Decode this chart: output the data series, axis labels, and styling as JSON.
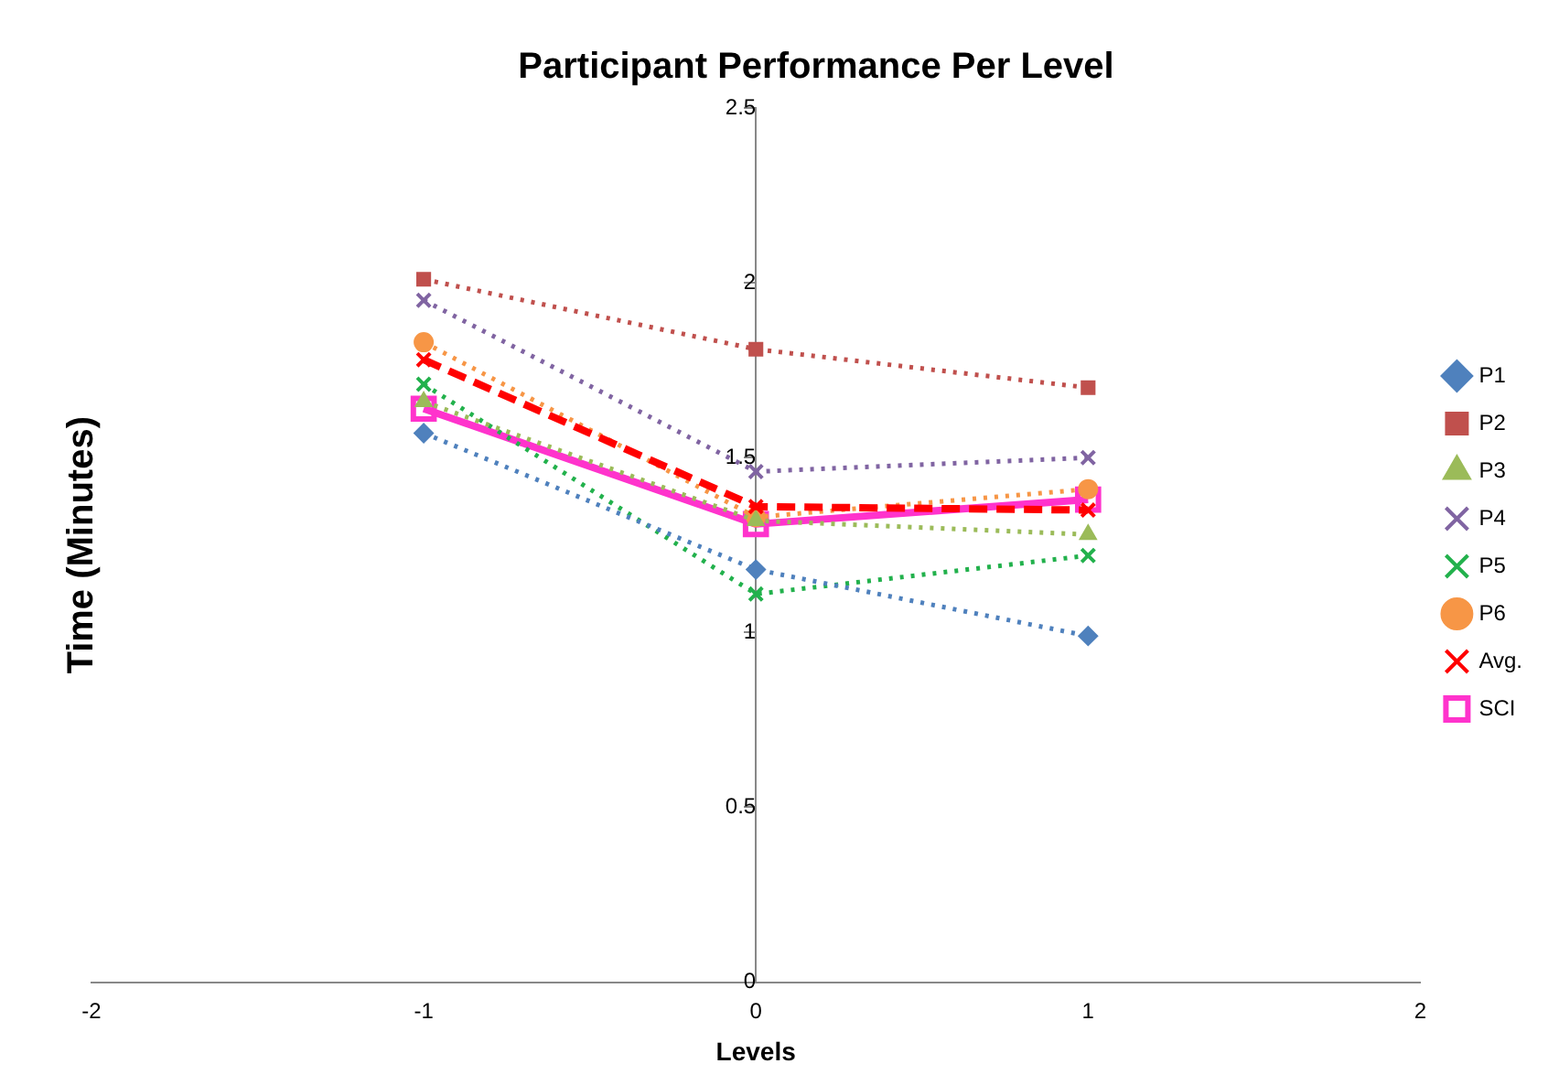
{
  "chart_data": {
    "type": "line",
    "title": "Participant Performance Per Level",
    "xlabel": "Levels",
    "ylabel": "Time (Minutes)",
    "x": [
      -1,
      0,
      1
    ],
    "xlim": [
      -2,
      2
    ],
    "xticks": [
      -2,
      -1,
      0,
      1,
      2
    ],
    "ylim": [
      0,
      2.5
    ],
    "yticks": [
      0,
      0.5,
      1,
      1.5,
      2,
      2.5
    ],
    "grid": false,
    "legend": "right",
    "series": [
      {
        "name": "P1",
        "color": "#4f81bd",
        "values": [
          1.57,
          1.18,
          0.99
        ],
        "marker": "diamond",
        "line_style": "dotted"
      },
      {
        "name": "P2",
        "color": "#c0504d",
        "values": [
          2.01,
          1.81,
          1.7
        ],
        "marker": "square",
        "line_style": "dotted"
      },
      {
        "name": "P3",
        "color": "#9bbb59",
        "values": [
          1.66,
          1.32,
          1.28
        ],
        "marker": "triangle",
        "line_style": "dotted"
      },
      {
        "name": "P4",
        "color": "#8064a2",
        "values": [
          1.95,
          1.46,
          1.5
        ],
        "marker": "cross",
        "line_style": "dotted"
      },
      {
        "name": "P5",
        "color": "#22b14c",
        "values": [
          1.71,
          1.11,
          1.22
        ],
        "marker": "cross",
        "line_style": "dotted"
      },
      {
        "name": "P6",
        "color": "#f79646",
        "values": [
          1.83,
          1.33,
          1.41
        ],
        "marker": "circle",
        "line_style": "dotted"
      },
      {
        "name": "Avg.",
        "color": "#ff0000",
        "values": [
          1.78,
          1.36,
          1.35
        ],
        "marker": "cross",
        "line_style": "dashed"
      },
      {
        "name": "SCI",
        "color": "#ff33cc",
        "values": [
          1.64,
          1.31,
          1.38
        ],
        "marker": "square",
        "line_style": "solid"
      }
    ]
  }
}
